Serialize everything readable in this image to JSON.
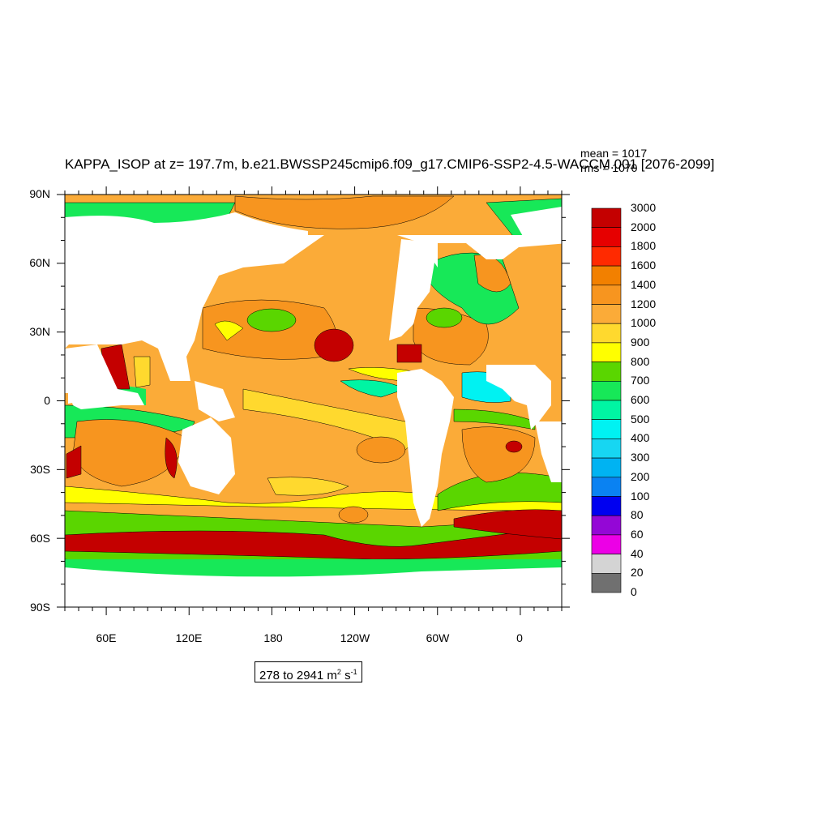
{
  "title": "KAPPA_ISOP at z= 197.7m, b.e21.BWSSP245cmip6.f09_g17.CMIP6-SSP2-4.5-WACCM.001 [2076-2099]",
  "stats": {
    "mean": "mean = 1017",
    "rms": "rms = 1070"
  },
  "range_label": {
    "text": "278 to 2941 m",
    "sup1": "2",
    "mid": " s",
    "sup2": "-1"
  },
  "axes": {
    "y_ticks": [
      "90N",
      "60N",
      "30N",
      "0",
      "30S",
      "60S",
      "90S"
    ],
    "x_ticks": [
      "60E",
      "120E",
      "180",
      "120W",
      "60W",
      "0"
    ]
  },
  "colorbar": {
    "labels": [
      "3000",
      "2000",
      "1800",
      "1600",
      "1400",
      "1200",
      "1000",
      "900",
      "800",
      "700",
      "600",
      "500",
      "400",
      "300",
      "200",
      "100",
      "80",
      "60",
      "40",
      "20",
      "0"
    ],
    "colors": [
      "#c40000",
      "#e60000",
      "#ff2a00",
      "#f28000",
      "#f7951f",
      "#fbab38",
      "#ffd92e",
      "#ffff00",
      "#5ad600",
      "#17e858",
      "#00f5a3",
      "#00f2f2",
      "#17d6f2",
      "#00b3f2",
      "#0a82f2",
      "#0000f0",
      "#9407d6",
      "#ec00e6",
      "#d4d4d4",
      "#707070"
    ]
  },
  "chart_data": {
    "type": "heatmap",
    "title": "KAPPA_ISOP at z= 197.7m, b.e21.BWSSP245cmip6.f09_g17.CMIP6-SSP2-4.5-WACCM.001 [2076-2099]",
    "variable": "KAPPA_ISOP",
    "units": "m2 s-1",
    "mean": 1017,
    "rms": 1070,
    "min": 278,
    "max": 2941,
    "lat_range": [
      -90,
      90
    ],
    "lon_range": [
      30,
      390
    ],
    "levels": [
      0,
      20,
      40,
      60,
      80,
      100,
      200,
      300,
      400,
      500,
      600,
      700,
      800,
      900,
      1000,
      1200,
      1400,
      1600,
      1800,
      2000,
      3000
    ]
  }
}
